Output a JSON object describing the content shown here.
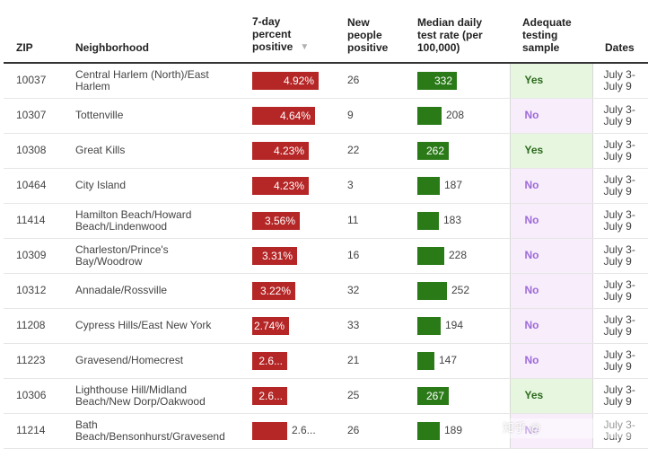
{
  "header": {
    "zip": "ZIP",
    "neighborhood": "Neighborhood",
    "pct_line1": "7-day",
    "pct_line2": "percent",
    "pct_line3": "positive",
    "new_line1": "New",
    "new_line2": "people",
    "new_line3": "positive",
    "rate_line1": "Median daily",
    "rate_line2": "test rate (per",
    "rate_line3": "100,000)",
    "adq_line1": "Adequate",
    "adq_line2": "testing",
    "adq_line3": "sample",
    "dates": "Dates",
    "sort_icon": "sort-descending-icon"
  },
  "rows": [
    {
      "zip": "10037",
      "nbhd1": "Central Harlem (North)/East",
      "nbhd2": "Harlem",
      "pct_label": "4.92%",
      "pct": 4.92,
      "new": "26",
      "rate_label": "332",
      "rate": 332,
      "adequate": "Yes",
      "date1": "July 3-",
      "date2": "July 9"
    },
    {
      "zip": "10307",
      "nbhd1": "Tottenville",
      "nbhd2": "",
      "pct_label": "4.64%",
      "pct": 4.64,
      "new": "9",
      "rate_label": "208",
      "rate": 208,
      "adequate": "No",
      "date1": "July 3-",
      "date2": "July 9"
    },
    {
      "zip": "10308",
      "nbhd1": "Great Kills",
      "nbhd2": "",
      "pct_label": "4.23%",
      "pct": 4.23,
      "new": "22",
      "rate_label": "262",
      "rate": 262,
      "adequate": "Yes",
      "date1": "July 3-",
      "date2": "July 9"
    },
    {
      "zip": "10464",
      "nbhd1": "City Island",
      "nbhd2": "",
      "pct_label": "4.23%",
      "pct": 4.23,
      "new": "3",
      "rate_label": "187",
      "rate": 187,
      "adequate": "No",
      "date1": "July 3-",
      "date2": "July 9"
    },
    {
      "zip": "11414",
      "nbhd1": "Hamilton Beach/Howard",
      "nbhd2": "Beach/Lindenwood",
      "pct_label": "3.56%",
      "pct": 3.56,
      "new": "11",
      "rate_label": "183",
      "rate": 183,
      "adequate": "No",
      "date1": "July 3-",
      "date2": "July 9"
    },
    {
      "zip": "10309",
      "nbhd1": "Charleston/Prince's",
      "nbhd2": "Bay/Woodrow",
      "pct_label": "3.31%",
      "pct": 3.31,
      "new": "16",
      "rate_label": "228",
      "rate": 228,
      "adequate": "No",
      "date1": "July 3-",
      "date2": "July 9"
    },
    {
      "zip": "10312",
      "nbhd1": "Annadale/Rossville",
      "nbhd2": "",
      "pct_label": "3.22%",
      "pct": 3.22,
      "new": "32",
      "rate_label": "252",
      "rate": 252,
      "adequate": "No",
      "date1": "July 3-",
      "date2": "July 9"
    },
    {
      "zip": "11208",
      "nbhd1": "Cypress Hills/East New York",
      "nbhd2": "",
      "pct_label": "2.74%",
      "pct": 2.74,
      "new": "33",
      "rate_label": "194",
      "rate": 194,
      "adequate": "No",
      "date1": "July 3-",
      "date2": "July 9"
    },
    {
      "zip": "11223",
      "nbhd1": "Gravesend/Homecrest",
      "nbhd2": "",
      "pct_label": "2.6...",
      "pct": 2.62,
      "new": "21",
      "rate_label": "147",
      "rate": 147,
      "adequate": "No",
      "date1": "July 3-",
      "date2": "July 9"
    },
    {
      "zip": "10306",
      "nbhd1": "Lighthouse Hill/Midland",
      "nbhd2": "Beach/New Dorp/Oakwood",
      "pct_label": "2.6...",
      "pct": 2.62,
      "new": "25",
      "rate_label": "267",
      "rate": 267,
      "adequate": "Yes",
      "date1": "July 3-",
      "date2": "July 9"
    },
    {
      "zip": "11214",
      "nbhd1": "Bath",
      "nbhd2": "Beach/Bensonhurst/Gravesend",
      "pct_label": "2.6...",
      "pct": 2.6,
      "new": "26",
      "rate_label": "189",
      "rate": 189,
      "adequate": "No",
      "date1": "July 3-",
      "date2": "July 9"
    }
  ],
  "watermark_text": "知乎 @"
}
